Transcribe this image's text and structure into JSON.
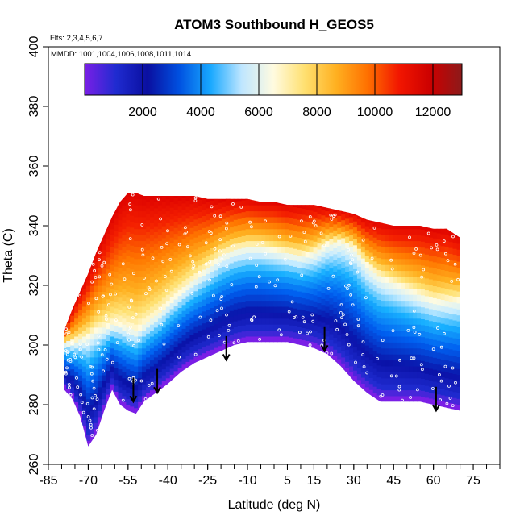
{
  "chart_data": {
    "type": "heatmap",
    "title": "ATOM3 Southbound H_GEOS5",
    "subtitle_flights": "Flts: 2,3,4,5,6,7",
    "subtitle_dates": "MMDD: 1001,1004,1006,1008,1011,1014",
    "xlabel": "Latitude (deg N)",
    "ylabel": "Theta (C)",
    "xlim": [
      -85,
      85
    ],
    "ylim": [
      260,
      400
    ],
    "x_ticks": [
      -85,
      -70,
      -55,
      -40,
      -25,
      -10,
      5,
      15,
      30,
      45,
      60,
      75
    ],
    "x_ticks_labeled": [
      "-85",
      "-70",
      "-55",
      "-40",
      "-25",
      "-10",
      "5",
      "15",
      "30",
      "45",
      "60",
      "75"
    ],
    "y_ticks": [
      "260",
      "280",
      "300",
      "320",
      "340",
      "360",
      "380",
      "400"
    ],
    "colorbar": {
      "min": 0,
      "max": 13000,
      "ticks": [
        "2000",
        "4000",
        "6000",
        "8000",
        "10000",
        "12000"
      ],
      "tick_values": [
        2000,
        4000,
        6000,
        8000,
        10000,
        12000
      ],
      "colors": [
        "#7a1fe6",
        "#1f2bd0",
        "#0a0fa0",
        "#0050e0",
        "#18a8ff",
        "#bfe6ff",
        "#fffbe0",
        "#ffe070",
        "#ffb020",
        "#ff7000",
        "#f21600",
        "#cc0000",
        "#8c1a1a"
      ]
    },
    "profile": {
      "lat": [
        -79,
        -76,
        -73,
        -70,
        -67,
        -64,
        -61,
        -58,
        -55,
        -52,
        -49,
        -46,
        -43,
        -40,
        -35,
        -30,
        -25,
        -20,
        -15,
        -10,
        -5,
        0,
        5,
        10,
        15,
        20,
        25,
        30,
        35,
        40,
        45,
        50,
        55,
        60,
        65,
        70
      ],
      "bottom": [
        285,
        282,
        276,
        266,
        270,
        278,
        285,
        280,
        278,
        277,
        281,
        283,
        285,
        287,
        291,
        294,
        296,
        298,
        300,
        301,
        301,
        301,
        301,
        300,
        299,
        297,
        293,
        288,
        284,
        281,
        281,
        281,
        281,
        280,
        279,
        278
      ],
      "top": [
        305,
        312,
        318,
        324,
        331,
        337,
        343,
        348,
        351,
        351,
        350,
        350,
        350,
        350,
        350,
        350,
        349,
        349,
        349,
        349,
        348,
        348,
        347,
        347,
        347,
        346,
        345,
        344,
        342,
        341,
        340,
        340,
        340,
        339,
        339,
        336
      ],
      "tropopause": [
        300,
        300,
        301,
        302,
        304,
        305,
        306,
        306,
        305,
        304,
        306,
        308,
        310,
        313,
        317,
        321,
        325,
        329,
        331,
        332,
        332,
        331,
        330,
        329,
        330,
        333,
        334,
        332,
        326,
        322,
        320,
        318,
        316,
        314,
        314,
        314
      ]
    },
    "arrows": [
      {
        "lat": -53,
        "theta": 284
      },
      {
        "lat": -44,
        "theta": 287
      },
      {
        "lat": -18,
        "theta": 298
      },
      {
        "lat": 19,
        "theta": 301
      },
      {
        "lat": 61,
        "theta": 281
      }
    ],
    "grid": false,
    "legend": "colorbar-top"
  }
}
